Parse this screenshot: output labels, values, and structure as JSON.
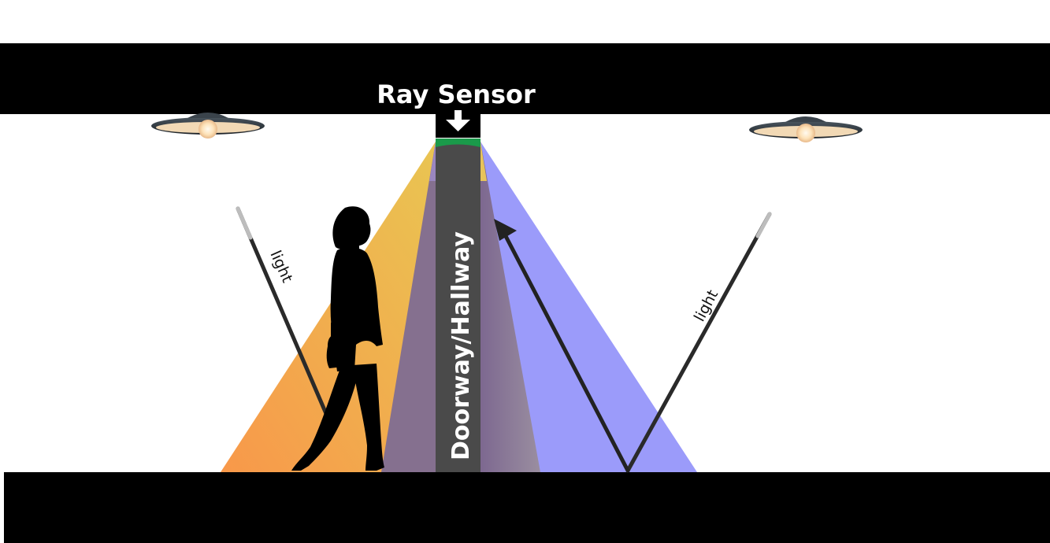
{
  "labels": {
    "sensor": "Ray Sensor",
    "doorway": "Doorway/Hallway",
    "light_left": "light",
    "light_right": "light"
  },
  "colors": {
    "structure": "#000000",
    "doorway": "#4a4a4a",
    "sensor_strip": "#1a9a4a",
    "beam_orange_start": "#f5a04a",
    "beam_orange_end": "#ecc052",
    "beam_blue": "#9b9bfa",
    "beam_overlap": "#8a7a90",
    "lamp_shade": "#2a2f35",
    "lamp_glow": "#fde6c0",
    "silhouette": "#000000"
  },
  "icons": {
    "sensor_arrow": "down-arrow-icon",
    "reflection_arrow": "up-arrow-icon"
  }
}
